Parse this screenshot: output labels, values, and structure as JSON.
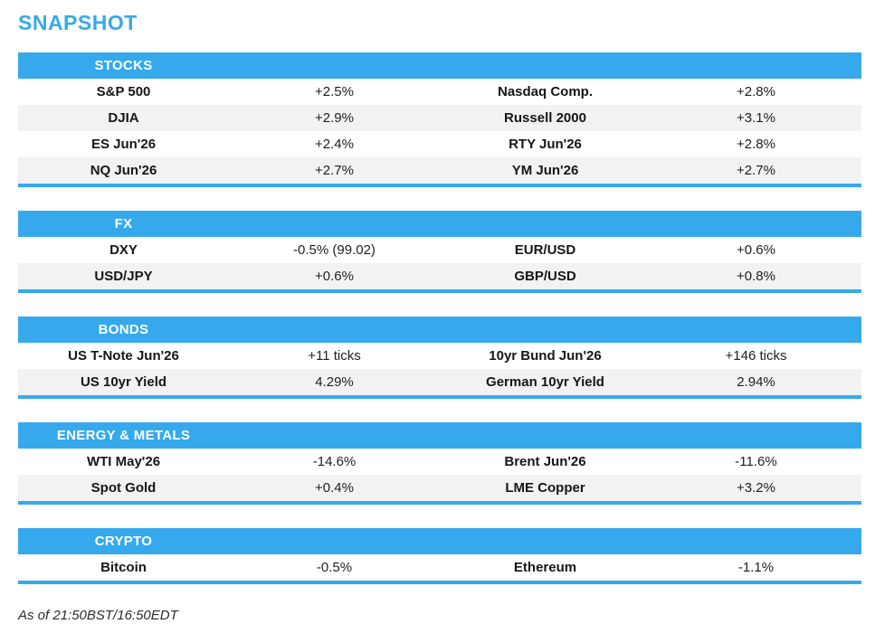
{
  "page_title": "SNAPSHOT",
  "footer_note": "As of 21:50BST/16:50EDT",
  "colors": {
    "accent": "#35a9ec",
    "row_alt": "#f2f2f2",
    "header_text": "#ffffff"
  },
  "sections": [
    {
      "title": "STOCKS",
      "rows": [
        {
          "label_left": "S&P 500",
          "value_left": "+2.5%",
          "label_right": "Nasdaq Comp.",
          "value_right": "+2.8%"
        },
        {
          "label_left": "DJIA",
          "value_left": "+2.9%",
          "label_right": "Russell 2000",
          "value_right": "+3.1%"
        },
        {
          "label_left": "ES Jun'26",
          "value_left": "+2.4%",
          "label_right": "RTY Jun'26",
          "value_right": "+2.8%"
        },
        {
          "label_left": "NQ Jun'26",
          "value_left": "+2.7%",
          "label_right": "YM Jun'26",
          "value_right": "+2.7%"
        }
      ]
    },
    {
      "title": "FX",
      "rows": [
        {
          "label_left": "DXY",
          "value_left": "-0.5% (99.02)",
          "label_right": "EUR/USD",
          "value_right": "+0.6%"
        },
        {
          "label_left": "USD/JPY",
          "value_left": "+0.6%",
          "label_right": "GBP/USD",
          "value_right": "+0.8%"
        }
      ]
    },
    {
      "title": "BONDS",
      "rows": [
        {
          "label_left": "US T-Note Jun'26",
          "value_left": "+11 ticks",
          "label_right": "10yr Bund Jun'26",
          "value_right": "+146 ticks"
        },
        {
          "label_left": "US 10yr Yield",
          "value_left": "4.29%",
          "label_right": "German 10yr Yield",
          "value_right": "2.94%"
        }
      ]
    },
    {
      "title": "ENERGY & METALS",
      "rows": [
        {
          "label_left": "WTI May'26",
          "value_left": "-14.6%",
          "label_right": "Brent Jun'26",
          "value_right": "-11.6%"
        },
        {
          "label_left": "Spot Gold",
          "value_left": "+0.4%",
          "label_right": "LME Copper",
          "value_right": "+3.2%"
        }
      ]
    },
    {
      "title": "CRYPTO",
      "rows": [
        {
          "label_left": "Bitcoin",
          "value_left": "-0.5%",
          "label_right": "Ethereum",
          "value_right": "-1.1%"
        }
      ]
    }
  ]
}
